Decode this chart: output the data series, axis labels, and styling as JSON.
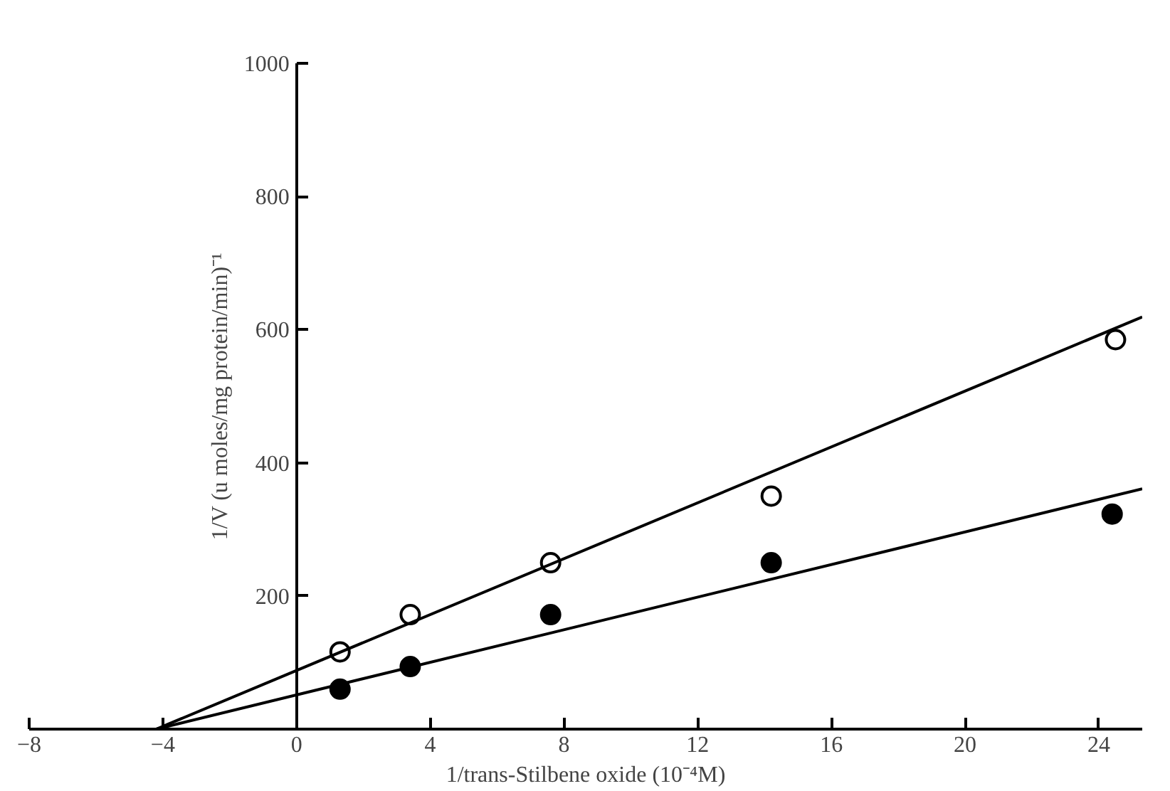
{
  "chart_data": {
    "type": "scatter",
    "xlabel": "1/trans-Stilbene oxide (10⁻⁴M)",
    "ylabel": "1/V (u moles/mg protein/min)⁻¹",
    "xlim": [
      -8,
      25.3
    ],
    "ylim": [
      0,
      1000
    ],
    "xticks": [
      -8,
      -4,
      0,
      4,
      8,
      12,
      16,
      20,
      24
    ],
    "yticks": [
      {
        "value": 0,
        "label": null
      },
      200,
      400,
      600,
      800,
      1000
    ],
    "grid": false,
    "series": [
      {
        "marker": "circle",
        "color": "#ffffff",
        "x": [
          1.3,
          3.4,
          7.6,
          14.2,
          24.5
        ],
        "values": [
          116,
          172,
          250,
          350,
          585
        ]
      },
      {
        "marker": "circle",
        "color": "#000000",
        "x": [
          1.3,
          3.4,
          7.6,
          14.2,
          24.4
        ],
        "values": [
          60,
          94,
          172,
          250,
          323
        ]
      },
      {
        "type": "line",
        "color": "#000000",
        "x": [
          -4.2,
          25.3
        ],
        "values": [
          0,
          619
        ]
      },
      {
        "type": "line",
        "color": "#000000",
        "x": [
          -4.2,
          25.3
        ],
        "values": [
          0,
          361
        ]
      }
    ]
  }
}
